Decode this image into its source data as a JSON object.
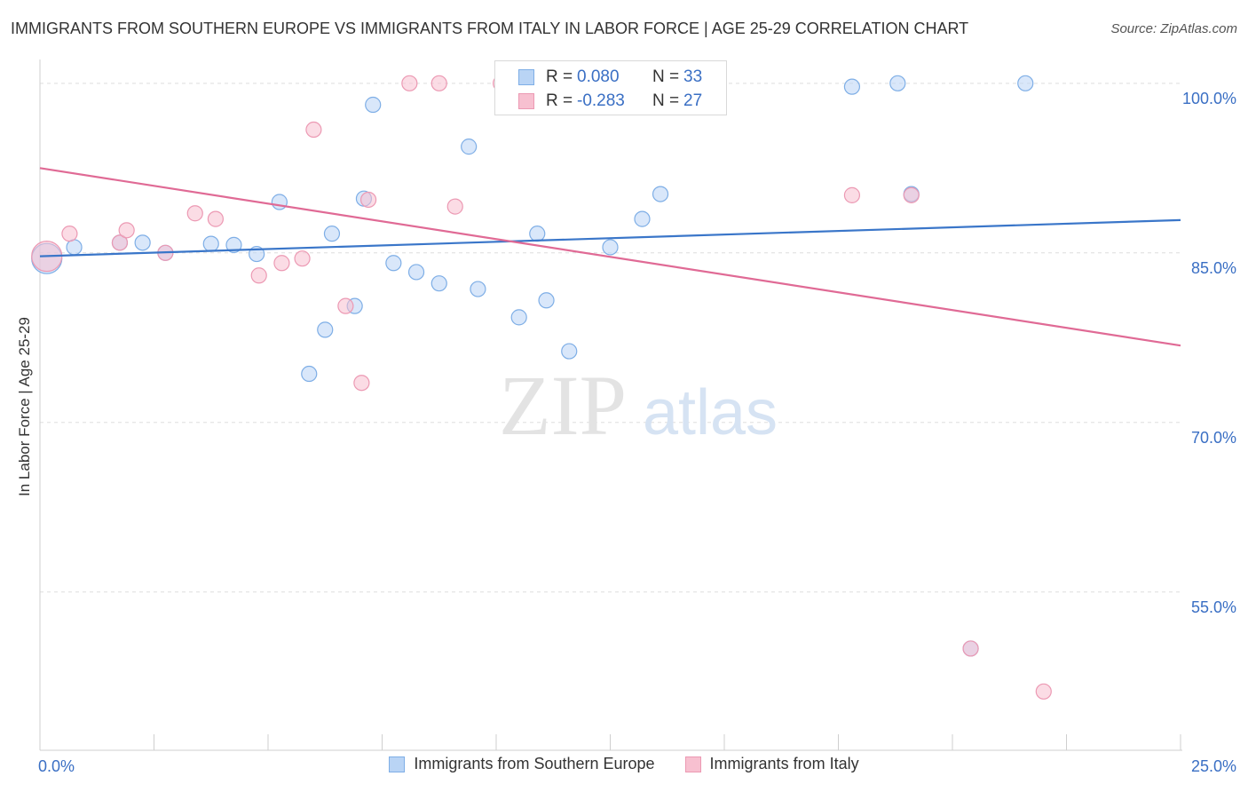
{
  "header": {
    "title": "IMMIGRANTS FROM SOUTHERN EUROPE VS IMMIGRANTS FROM ITALY IN LABOR FORCE | AGE 25-29 CORRELATION CHART",
    "source": "Source: ZipAtlas.com"
  },
  "watermark": {
    "zip": "ZIP",
    "atlas": "atlas"
  },
  "colors": {
    "series_blue_fill": "#b9d4f5",
    "series_blue_stroke": "#7eaee6",
    "series_blue_line": "#3a76c9",
    "series_pink_fill": "#f7c0d0",
    "series_pink_stroke": "#ec99b3",
    "series_pink_line": "#e06a95",
    "axis_text": "#3a6fc4"
  },
  "stats": {
    "r_label": "R =",
    "n_label": "N =",
    "blue": {
      "r": "0.080",
      "n": "33"
    },
    "pink": {
      "r": "-0.283",
      "n": "27"
    }
  },
  "legend": {
    "blue": "Immigrants from Southern Europe",
    "pink": "Immigrants from Italy"
  },
  "chart_data": {
    "type": "scatter",
    "title": "IMMIGRANTS FROM SOUTHERN EUROPE VS IMMIGRANTS FROM ITALY IN LABOR FORCE | AGE 25-29 CORRELATION CHART",
    "xlabel": "",
    "ylabel": "In Labor Force | Age 25-29",
    "xlim": [
      0,
      25
    ],
    "ylim": [
      41,
      102.5
    ],
    "x_tick_labels": [
      {
        "value": 0,
        "label": "0.0%"
      },
      {
        "value": 25,
        "label": "25.0%"
      }
    ],
    "y_tick_labels": [
      {
        "value": 100,
        "label": "100.0%"
      },
      {
        "value": 85,
        "label": "85.0%"
      },
      {
        "value": 70,
        "label": "70.0%"
      },
      {
        "value": 55,
        "label": "55.0%"
      }
    ],
    "y_gridlines": [
      100,
      85,
      70,
      55
    ],
    "x_minor_ticks": [
      2.5,
      5,
      7.5,
      10,
      12.5,
      15,
      17.5,
      20,
      22.5,
      25
    ],
    "grid": true,
    "legend_position": "bottom",
    "series": [
      {
        "name": "Immigrants from Southern Europe",
        "color": "#7eaee6",
        "r": 0.08,
        "n": 33,
        "trend": {
          "x": [
            0,
            25
          ],
          "y": [
            84.7,
            87.9
          ]
        },
        "points": [
          {
            "x": 0.15,
            "y": 84.5,
            "large": true
          },
          {
            "x": 0.75,
            "y": 85.5
          },
          {
            "x": 1.75,
            "y": 85.9
          },
          {
            "x": 2.25,
            "y": 85.9
          },
          {
            "x": 2.75,
            "y": 85.0
          },
          {
            "x": 3.75,
            "y": 85.8
          },
          {
            "x": 4.25,
            "y": 85.7
          },
          {
            "x": 4.75,
            "y": 84.9
          },
          {
            "x": 5.25,
            "y": 89.5
          },
          {
            "x": 6.4,
            "y": 86.7
          },
          {
            "x": 7.1,
            "y": 89.8
          },
          {
            "x": 5.9,
            "y": 74.3
          },
          {
            "x": 6.25,
            "y": 78.2
          },
          {
            "x": 6.9,
            "y": 80.3
          },
          {
            "x": 7.3,
            "y": 98.1
          },
          {
            "x": 7.75,
            "y": 84.1
          },
          {
            "x": 8.25,
            "y": 83.3
          },
          {
            "x": 8.75,
            "y": 82.3
          },
          {
            "x": 9.4,
            "y": 94.4
          },
          {
            "x": 9.6,
            "y": 81.8
          },
          {
            "x": 10.5,
            "y": 79.3
          },
          {
            "x": 10.9,
            "y": 86.7
          },
          {
            "x": 11.1,
            "y": 80.8
          },
          {
            "x": 11.6,
            "y": 76.3
          },
          {
            "x": 12.5,
            "y": 85.5
          },
          {
            "x": 13.2,
            "y": 88.0
          },
          {
            "x": 13.6,
            "y": 90.2
          },
          {
            "x": 17.8,
            "y": 99.7
          },
          {
            "x": 18.8,
            "y": 100.0
          },
          {
            "x": 19.1,
            "y": 90.2
          },
          {
            "x": 21.6,
            "y": 100.0
          },
          {
            "x": 20.4,
            "y": 50.0
          }
        ]
      },
      {
        "name": "Immigrants from Italy",
        "color": "#ec99b3",
        "r": -0.283,
        "n": 27,
        "trend": {
          "x": [
            0,
            25
          ],
          "y": [
            92.5,
            76.8
          ]
        },
        "points": [
          {
            "x": 0.15,
            "y": 84.7,
            "large": true
          },
          {
            "x": 0.65,
            "y": 86.7
          },
          {
            "x": 1.75,
            "y": 85.9
          },
          {
            "x": 1.9,
            "y": 87.0
          },
          {
            "x": 2.75,
            "y": 85.0
          },
          {
            "x": 3.4,
            "y": 88.5
          },
          {
            "x": 3.85,
            "y": 88.0
          },
          {
            "x": 4.8,
            "y": 83.0
          },
          {
            "x": 5.3,
            "y": 84.1
          },
          {
            "x": 5.75,
            "y": 84.5
          },
          {
            "x": 6.0,
            "y": 95.9
          },
          {
            "x": 7.2,
            "y": 89.7
          },
          {
            "x": 6.7,
            "y": 80.3
          },
          {
            "x": 7.05,
            "y": 73.5
          },
          {
            "x": 8.1,
            "y": 100.0
          },
          {
            "x": 8.75,
            "y": 100.0
          },
          {
            "x": 9.1,
            "y": 89.1
          },
          {
            "x": 10.1,
            "y": 100.0
          },
          {
            "x": 11.1,
            "y": 100.0
          },
          {
            "x": 12.75,
            "y": 100.0
          },
          {
            "x": 13.7,
            "y": 100.0
          },
          {
            "x": 14.3,
            "y": 100.0
          },
          {
            "x": 17.8,
            "y": 90.1
          },
          {
            "x": 19.1,
            "y": 90.1
          },
          {
            "x": 20.4,
            "y": 50.0
          },
          {
            "x": 22.0,
            "y": 46.2
          }
        ]
      }
    ]
  }
}
